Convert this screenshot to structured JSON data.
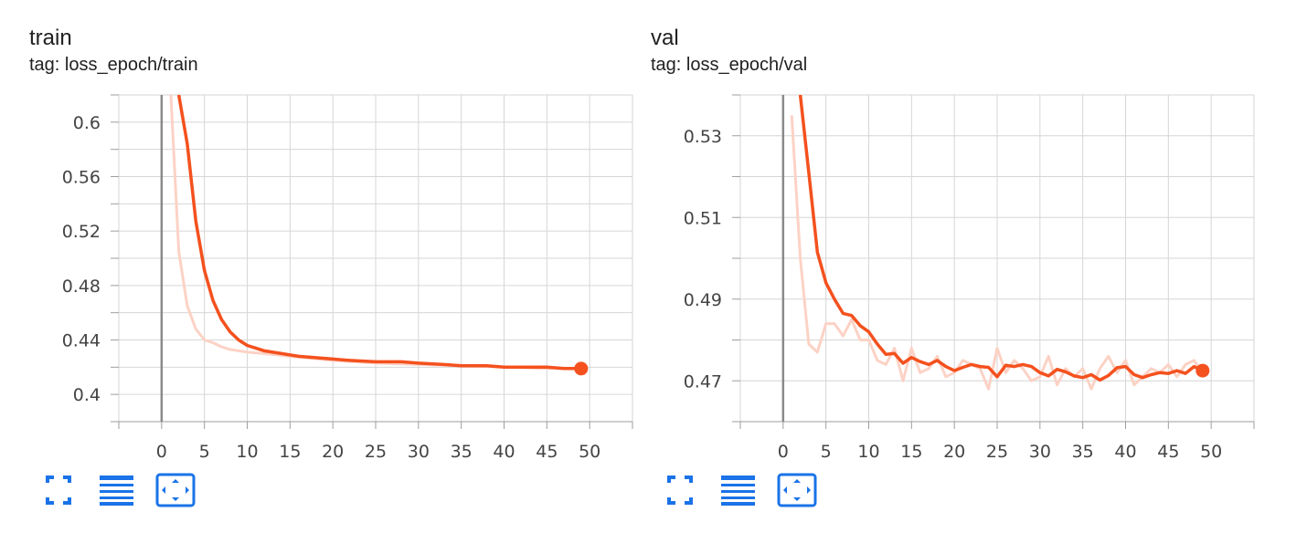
{
  "colors": {
    "accent": "#f4511e",
    "accent_light": "#fcd2c5",
    "grid": "#d6d6d6",
    "zero_line": "#8a8a8a",
    "icon_blue": "#1a73e8"
  },
  "icons": [
    "fit-domain-icon",
    "toggle-log-scale-icon",
    "reset-zoom-icon"
  ],
  "panels": [
    {
      "title": "train",
      "tag": "tag: loss_epoch/train",
      "chart_data": {
        "type": "line",
        "title": "train",
        "xlabel": "",
        "ylabel": "",
        "xlim": [
          -5,
          55
        ],
        "ylim": [
          0.38,
          0.62
        ],
        "x_ticks": [
          "0",
          "5",
          "10",
          "15",
          "20",
          "25",
          "30",
          "35",
          "40",
          "45",
          "50"
        ],
        "y_ticks": [
          "0.4",
          "0.44",
          "0.48",
          "0.52",
          "0.56",
          "0.6"
        ],
        "grid": true,
        "series": [
          {
            "role": "raw",
            "x": [
              1,
              2,
              3,
              4,
              5,
              6,
              7,
              8,
              9,
              10,
              12,
              15,
              20,
              25,
              30,
              35,
              40,
              45,
              49
            ],
            "y": [
              0.63,
              0.505,
              0.465,
              0.448,
              0.44,
              0.438,
              0.435,
              0.433,
              0.432,
              0.431,
              0.43,
              0.428,
              0.425,
              0.423,
              0.422,
              0.421,
              0.42,
              0.419,
              0.419
            ]
          },
          {
            "role": "smoothed",
            "x": [
              2,
              3,
              4,
              5,
              6,
              7,
              8,
              9,
              10,
              11,
              12,
              13,
              14,
              15,
              16,
              18,
              20,
              22,
              25,
              28,
              30,
              33,
              35,
              38,
              40,
              43,
              45,
              47,
              49
            ],
            "y": [
              0.62,
              0.584,
              0.527,
              0.491,
              0.469,
              0.455,
              0.446,
              0.44,
              0.436,
              0.434,
              0.432,
              0.431,
              0.43,
              0.429,
              0.428,
              0.427,
              0.426,
              0.425,
              0.424,
              0.424,
              0.423,
              0.422,
              0.421,
              0.421,
              0.42,
              0.42,
              0.42,
              0.419,
              0.419
            ]
          }
        ]
      }
    },
    {
      "title": "val",
      "tag": "tag: loss_epoch/val",
      "chart_data": {
        "type": "line",
        "title": "val",
        "xlabel": "",
        "ylabel": "",
        "xlim": [
          -5,
          55
        ],
        "ylim": [
          0.46,
          0.54
        ],
        "x_ticks": [
          "0",
          "5",
          "10",
          "15",
          "20",
          "25",
          "30",
          "35",
          "40",
          "45",
          "50"
        ],
        "y_ticks": [
          "0.47",
          "0.49",
          "0.51",
          "0.53"
        ],
        "grid": true,
        "series": [
          {
            "role": "raw",
            "x": [
              1,
              2,
              3,
              4,
              5,
              6,
              7,
              8,
              9,
              10,
              11,
              12,
              13,
              14,
              15,
              16,
              17,
              18,
              19,
              20,
              21,
              22,
              23,
              24,
              25,
              26,
              27,
              28,
              29,
              30,
              31,
              32,
              33,
              34,
              35,
              36,
              37,
              38,
              39,
              40,
              41,
              42,
              43,
              44,
              45,
              46,
              47,
              48,
              49
            ],
            "y": [
              0.535,
              0.5,
              0.479,
              0.477,
              0.484,
              0.484,
              0.481,
              0.485,
              0.48,
              0.48,
              0.475,
              0.474,
              0.478,
              0.47,
              0.478,
              0.472,
              0.473,
              0.476,
              0.471,
              0.472,
              0.475,
              0.474,
              0.473,
              0.468,
              0.478,
              0.472,
              0.475,
              0.473,
              0.47,
              0.471,
              0.476,
              0.469,
              0.473,
              0.471,
              0.473,
              0.468,
              0.473,
              0.476,
              0.472,
              0.475,
              0.469,
              0.471,
              0.473,
              0.472,
              0.474,
              0.471,
              0.474,
              0.475,
              0.472
            ]
          },
          {
            "role": "smoothed",
            "x": [
              2,
              3,
              4,
              5,
              6,
              7,
              8,
              9,
              10,
              11,
              12,
              13,
              14,
              15,
              16,
              17,
              18,
              19,
              20,
              21,
              22,
              23,
              24,
              25,
              26,
              27,
              28,
              29,
              30,
              31,
              32,
              33,
              34,
              35,
              36,
              37,
              38,
              39,
              40,
              41,
              42,
              43,
              44,
              45,
              46,
              47,
              48,
              49
            ],
            "y": [
              0.54,
              0.521,
              0.5015,
              0.494,
              0.49,
              0.4865,
              0.486,
              0.4835,
              0.482,
              0.479,
              0.4765,
              0.4767,
              0.4743,
              0.4757,
              0.4747,
              0.474,
              0.475,
              0.4735,
              0.4725,
              0.4733,
              0.474,
              0.4735,
              0.4733,
              0.471,
              0.4738,
              0.4735,
              0.474,
              0.4735,
              0.472,
              0.4712,
              0.4728,
              0.4722,
              0.4712,
              0.4708,
              0.4715,
              0.4702,
              0.4713,
              0.4732,
              0.4735,
              0.4715,
              0.4708,
              0.4715,
              0.472,
              0.4718,
              0.4725,
              0.4718,
              0.4735,
              0.4725
            ]
          }
        ]
      }
    }
  ]
}
